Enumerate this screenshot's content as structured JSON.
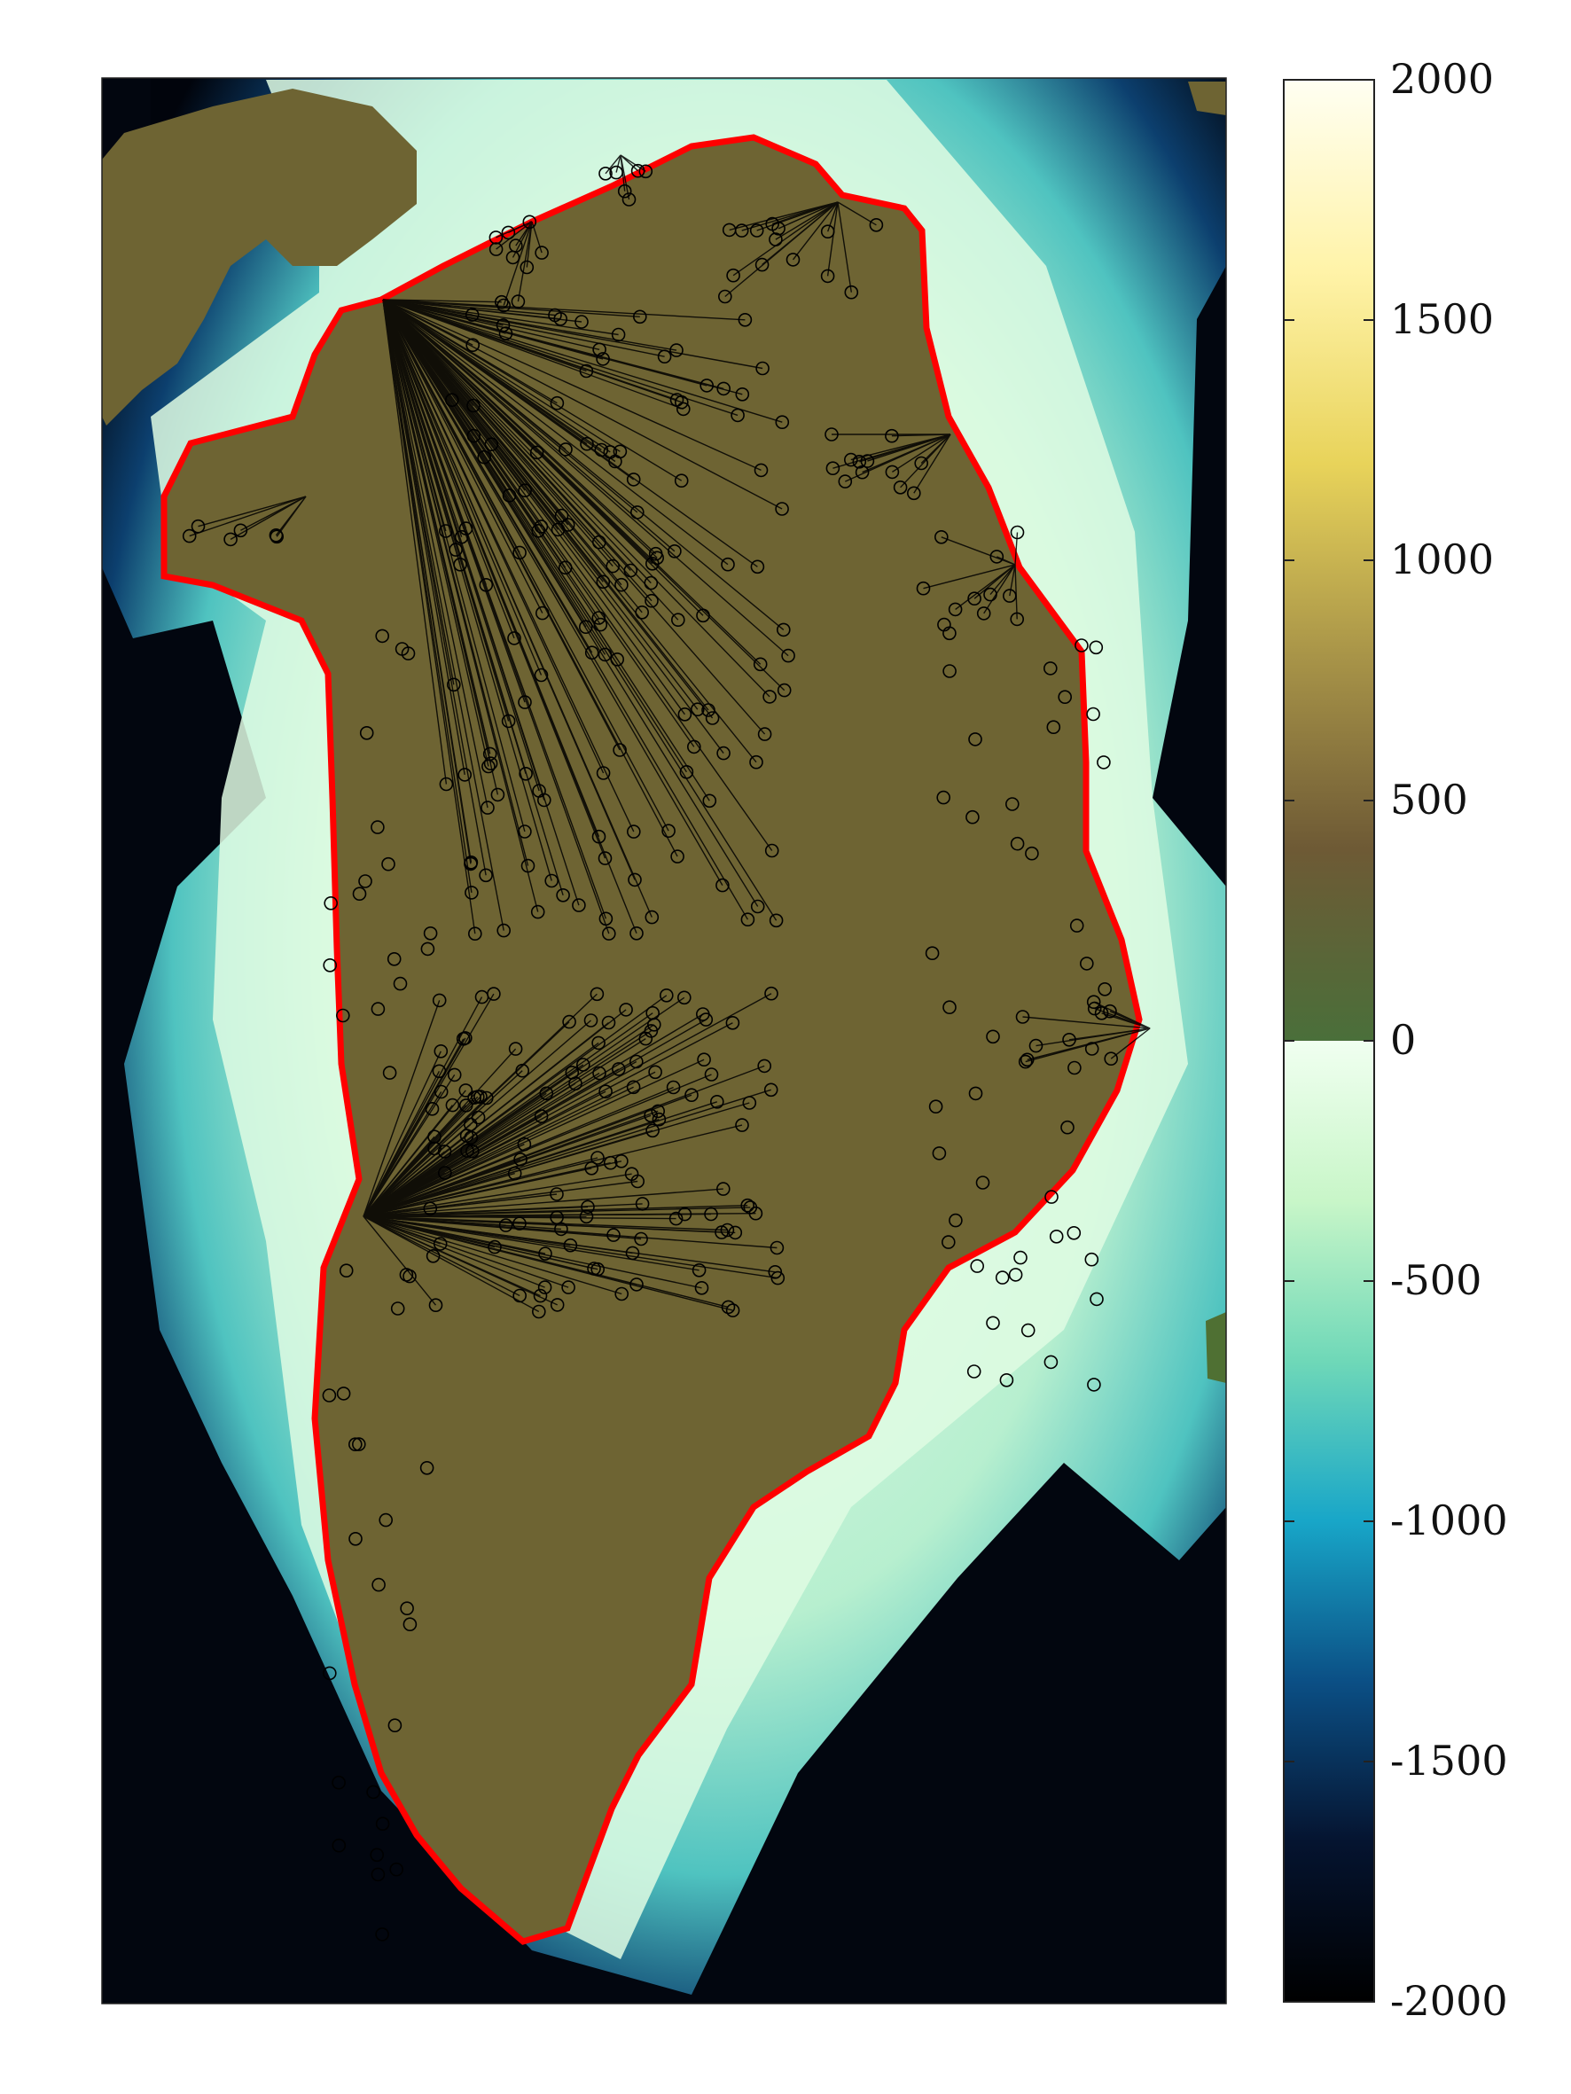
{
  "colorbar": {
    "ticks": [
      "2000",
      "1500",
      "1000",
      "500",
      "0",
      "-500",
      "-1000",
      "-1500",
      "-2000"
    ],
    "tick_values": [
      2000,
      1500,
      1000,
      500,
      0,
      -500,
      -1000,
      -1500,
      -2000
    ],
    "range": [
      -2000,
      2000
    ],
    "land_stops": [
      "#4a6f3a",
      "#6e5a35",
      "#a89448",
      "#e8d35a",
      "#fff3a8",
      "#fffff2"
    ],
    "ocean_stops": [
      "#000000",
      "#051430",
      "#0b4f85",
      "#18a6c8",
      "#6fd8b8",
      "#c8f6c8",
      "#f0fff0"
    ]
  },
  "colors": {
    "coastline": "#ff0000",
    "ice_sheet": "#6e6433",
    "low_land": "#4f7033",
    "nunatak": "#ff00ff",
    "shelf": "#d8fbd8",
    "deep_ocean": "#02060f",
    "markers": "#000000"
  }
}
